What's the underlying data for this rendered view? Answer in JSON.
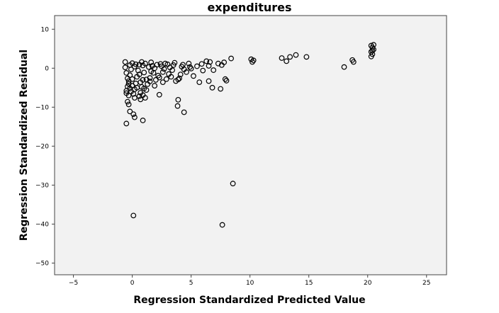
{
  "chart_data": {
    "type": "scatter",
    "title": "expenditures",
    "xlabel": "Regression Standardized Predicted Value",
    "ylabel": "Regression Standardized Residual",
    "xlim": [
      -6.6,
      26.7
    ],
    "ylim": [
      -53,
      13.5
    ],
    "xticks": [
      -5,
      0,
      5,
      10,
      15,
      20,
      25
    ],
    "yticks": [
      10,
      0,
      -10,
      -20,
      -30,
      -40,
      -50
    ],
    "grid": false,
    "colors": {
      "plot_bg": "#f2f2f2",
      "marker": "#000000",
      "frame": "#444444"
    },
    "points": [
      [
        0.1,
        -37.8
      ],
      [
        7.65,
        -40.2
      ],
      [
        8.55,
        -29.6
      ],
      [
        -0.5,
        -14.2
      ],
      [
        0.9,
        -13.4
      ],
      [
        0.2,
        -12.6
      ],
      [
        -0.2,
        -11.1
      ],
      [
        0.1,
        -11.8
      ],
      [
        4.4,
        -11.3
      ],
      [
        3.85,
        -9.7
      ],
      [
        3.9,
        -8.1
      ],
      [
        2.3,
        -6.8
      ],
      [
        0.7,
        -8.0
      ],
      [
        -0.3,
        -9.3
      ],
      [
        -0.4,
        -8.6
      ],
      [
        1.1,
        -7.6
      ],
      [
        5.7,
        -3.6
      ],
      [
        6.5,
        -3.3
      ],
      [
        6.8,
        -5.0
      ],
      [
        7.5,
        -5.3
      ],
      [
        8.0,
        -3.2
      ],
      [
        7.9,
        -2.8
      ],
      [
        5.2,
        -2.0
      ],
      [
        4.6,
        -1.0
      ],
      [
        10.1,
        2.3
      ],
      [
        10.2,
        1.6
      ],
      [
        10.3,
        2.0
      ],
      [
        12.7,
        2.6
      ],
      [
        13.1,
        1.8
      ],
      [
        13.4,
        2.9
      ],
      [
        13.9,
        3.4
      ],
      [
        14.8,
        2.9
      ],
      [
        18.0,
        0.3
      ],
      [
        18.7,
        2.1
      ],
      [
        18.8,
        1.6
      ],
      [
        20.3,
        3.0
      ],
      [
        20.4,
        3.6
      ],
      [
        20.3,
        4.2
      ],
      [
        20.5,
        4.8
      ],
      [
        20.4,
        5.3
      ],
      [
        20.3,
        5.8
      ],
      [
        20.5,
        6.0
      ],
      [
        20.4,
        4.5
      ],
      [
        8.4,
        2.5
      ],
      [
        7.8,
        1.5
      ],
      [
        7.6,
        0.8
      ],
      [
        7.3,
        1.2
      ],
      [
        6.6,
        1.6
      ],
      [
        6.5,
        0.6
      ],
      [
        6.9,
        -0.5
      ],
      [
        6.3,
        1.8
      ],
      [
        5.5,
        0.5
      ],
      [
        5.9,
        1.1
      ],
      [
        6.0,
        -0.6
      ],
      [
        4.8,
        1.2
      ],
      [
        4.9,
        0.3
      ],
      [
        4.3,
        0.9
      ],
      [
        4.4,
        -0.3
      ],
      [
        4.1,
        -1.6
      ],
      [
        3.9,
        -2.9
      ],
      [
        3.7,
        -3.3
      ],
      [
        4.0,
        -2.6
      ],
      [
        3.5,
        0.8
      ],
      [
        3.4,
        -0.5
      ],
      [
        3.0,
        1.0
      ],
      [
        3.1,
        -1.5
      ],
      [
        2.9,
        -2.8
      ],
      [
        2.6,
        -3.6
      ],
      [
        2.7,
        -0.2
      ],
      [
        2.4,
        1.1
      ],
      [
        2.2,
        -1.9
      ],
      [
        2.0,
        -3.0
      ],
      [
        1.9,
        -4.5
      ],
      [
        1.7,
        0.6
      ],
      [
        1.6,
        -0.8
      ],
      [
        1.5,
        -2.5
      ],
      [
        1.3,
        -4.1
      ],
      [
        1.2,
        -5.6
      ],
      [
        1.1,
        1.2
      ],
      [
        1.0,
        -1.1
      ],
      [
        0.9,
        -3.0
      ],
      [
        0.8,
        -4.8
      ],
      [
        0.7,
        -6.3
      ],
      [
        0.6,
        0.9
      ],
      [
        0.5,
        -0.6
      ],
      [
        0.4,
        -2.2
      ],
      [
        0.3,
        -3.9
      ],
      [
        0.2,
        -5.4
      ],
      [
        0.1,
        -6.6
      ],
      [
        0.0,
        1.3
      ],
      [
        -0.1,
        -0.3
      ],
      [
        -0.2,
        -1.8
      ],
      [
        -0.3,
        -3.3
      ],
      [
        -0.4,
        -4.7
      ],
      [
        -0.5,
        -5.8
      ],
      [
        -0.6,
        1.6
      ],
      [
        -0.6,
        0.2
      ],
      [
        -0.5,
        -1.2
      ],
      [
        -0.4,
        -2.6
      ],
      [
        -0.3,
        -4.0
      ],
      [
        -0.2,
        -5.2
      ],
      [
        -0.5,
        -6.4
      ],
      [
        0.2,
        0.4
      ],
      [
        0.6,
        -1.6
      ],
      [
        1.4,
        0.3
      ],
      [
        1.8,
        -1.2
      ],
      [
        2.5,
        0.5
      ],
      [
        3.2,
        0.2
      ],
      [
        0.9,
        0.7
      ],
      [
        0.3,
        1.0
      ],
      [
        -0.2,
        0.8
      ],
      [
        1.2,
        -2.9
      ],
      [
        0.7,
        -3.6
      ],
      [
        0.0,
        -2.8
      ],
      [
        2.1,
        0.9
      ],
      [
        2.8,
        1.2
      ],
      [
        3.6,
        1.4
      ],
      [
        1.6,
        1.5
      ],
      [
        0.8,
        1.6
      ],
      [
        0.0,
        -4.5
      ],
      [
        0.4,
        -5.0
      ],
      [
        -0.1,
        -6.0
      ],
      [
        1.0,
        -5.2
      ],
      [
        1.5,
        -3.4
      ],
      [
        0.6,
        -7.2
      ],
      [
        0.2,
        -7.6
      ],
      [
        -0.3,
        -7.0
      ],
      [
        0.9,
        -6.9
      ],
      [
        2.6,
        -1.0
      ],
      [
        3.3,
        -2.2
      ],
      [
        4.2,
        0.4
      ],
      [
        5.0,
        -0.1
      ],
      [
        1.9,
        0.0
      ],
      [
        2.3,
        -2.4
      ]
    ]
  }
}
